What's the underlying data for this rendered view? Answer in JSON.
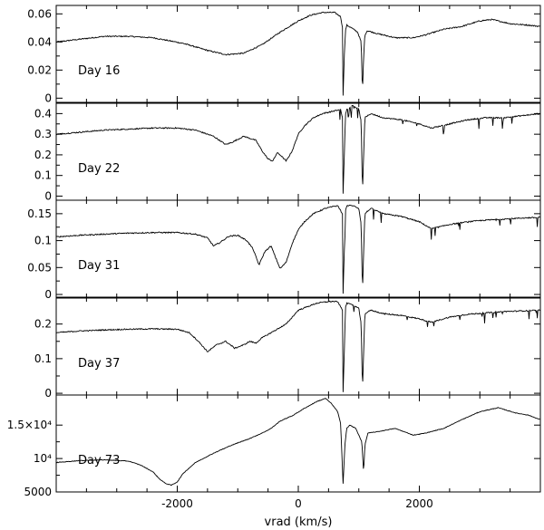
{
  "chart_data": [
    {
      "type": "line",
      "panel_label": "Day 16",
      "ylim": [
        -0.003,
        0.066
      ],
      "y_ticks": [
        0,
        0.02,
        0.04,
        0.06
      ],
      "y_tick_labels": [
        "0",
        "0.02",
        "0.04",
        "0.06"
      ],
      "series": [
        {
          "x": [
            -4000,
            -3600,
            -3200,
            -2800,
            -2400,
            -1900,
            -1500,
            -1200,
            -900,
            -600,
            -300,
            0,
            200,
            400,
            600,
            700,
            730,
            740,
            760,
            780,
            800,
            880,
            980,
            1040,
            1060,
            1080,
            1100,
            1140,
            1300,
            1600,
            1900,
            2100,
            2400,
            2700,
            3000,
            3200,
            3500,
            3800,
            4000
          ],
          "y": [
            0.04,
            0.042,
            0.044,
            0.044,
            0.043,
            0.039,
            0.034,
            0.031,
            0.032,
            0.038,
            0.047,
            0.055,
            0.059,
            0.061,
            0.061,
            0.058,
            0.05,
            0.002,
            0.03,
            0.048,
            0.052,
            0.05,
            0.047,
            0.04,
            0.003,
            0.03,
            0.045,
            0.048,
            0.046,
            0.043,
            0.043,
            0.045,
            0.049,
            0.051,
            0.055,
            0.056,
            0.053,
            0.052,
            0.051
          ]
        }
      ]
    },
    {
      "type": "line",
      "panel_label": "Day 22",
      "ylim": [
        -0.02,
        0.45
      ],
      "y_ticks": [
        0,
        0.1,
        0.2,
        0.3,
        0.4
      ],
      "y_tick_labels": [
        "0",
        "0.1",
        "0.2",
        "0.3",
        "0.4"
      ],
      "series": [
        {
          "x": [
            -4000,
            -3600,
            -3200,
            -2800,
            -2400,
            -2000,
            -1700,
            -1400,
            -1200,
            -1100,
            -900,
            -700,
            -600,
            -500,
            -420,
            -350,
            -300,
            -200,
            -100,
            0,
            100,
            250,
            400,
            550,
            700,
            730,
            740,
            760,
            780,
            800,
            900,
            1000,
            1040,
            1060,
            1080,
            1100,
            1200,
            1400,
            1700,
            2000,
            2200,
            2500,
            2800,
            3100,
            3400,
            3700,
            4000
          ],
          "y": [
            0.3,
            0.31,
            0.32,
            0.325,
            0.33,
            0.33,
            0.32,
            0.29,
            0.25,
            0.26,
            0.29,
            0.27,
            0.22,
            0.18,
            0.17,
            0.21,
            0.2,
            0.17,
            0.22,
            0.3,
            0.34,
            0.38,
            0.4,
            0.41,
            0.42,
            0.38,
            0.01,
            0.2,
            0.4,
            0.42,
            0.44,
            0.42,
            0.36,
            0.01,
            0.2,
            0.38,
            0.4,
            0.38,
            0.37,
            0.35,
            0.33,
            0.35,
            0.37,
            0.38,
            0.38,
            0.39,
            0.4
          ]
        }
      ]
    },
    {
      "type": "line",
      "panel_label": "Day 31",
      "ylim": [
        -0.005,
        0.175
      ],
      "y_ticks": [
        0,
        0.05,
        0.1,
        0.15
      ],
      "y_tick_labels": [
        "0",
        "0.05",
        "0.1",
        "0.15"
      ],
      "series": [
        {
          "x": [
            -4000,
            -3600,
            -3200,
            -2800,
            -2400,
            -2000,
            -1700,
            -1500,
            -1400,
            -1300,
            -1150,
            -1000,
            -850,
            -750,
            -650,
            -550,
            -450,
            -380,
            -300,
            -200,
            -100,
            0,
            100,
            250,
            450,
            650,
            730,
            740,
            760,
            780,
            800,
            900,
            1000,
            1040,
            1060,
            1080,
            1100,
            1200,
            1400,
            1700,
            2000,
            2200,
            2500,
            2800,
            3100,
            3400,
            3700,
            4000
          ],
          "y": [
            0.107,
            0.11,
            0.112,
            0.114,
            0.115,
            0.115,
            0.112,
            0.105,
            0.09,
            0.096,
            0.108,
            0.11,
            0.1,
            0.085,
            0.055,
            0.08,
            0.09,
            0.07,
            0.048,
            0.06,
            0.095,
            0.12,
            0.135,
            0.15,
            0.16,
            0.165,
            0.15,
            0.002,
            0.08,
            0.155,
            0.165,
            0.165,
            0.16,
            0.13,
            0.002,
            0.08,
            0.15,
            0.16,
            0.15,
            0.145,
            0.135,
            0.122,
            0.13,
            0.135,
            0.138,
            0.14,
            0.142,
            0.143
          ]
        }
      ]
    },
    {
      "type": "line",
      "panel_label": "Day 37",
      "ylim": [
        -0.005,
        0.275
      ],
      "y_ticks": [
        0,
        0.1,
        0.2
      ],
      "y_tick_labels": [
        "0",
        "0.1",
        "0.2"
      ],
      "series": [
        {
          "x": [
            -4000,
            -3600,
            -3200,
            -2800,
            -2400,
            -2000,
            -1800,
            -1650,
            -1500,
            -1350,
            -1200,
            -1050,
            -900,
            -800,
            -700,
            -600,
            -500,
            -400,
            -300,
            -200,
            -100,
            0,
            150,
            300,
            500,
            650,
            730,
            740,
            760,
            780,
            800,
            900,
            1000,
            1040,
            1060,
            1080,
            1100,
            1200,
            1400,
            1700,
            2000,
            2200,
            2500,
            2800,
            3100,
            3400,
            3700,
            4000
          ],
          "y": [
            0.175,
            0.18,
            0.183,
            0.185,
            0.186,
            0.185,
            0.175,
            0.15,
            0.12,
            0.14,
            0.15,
            0.13,
            0.14,
            0.15,
            0.145,
            0.16,
            0.17,
            0.18,
            0.19,
            0.2,
            0.22,
            0.24,
            0.25,
            0.26,
            0.265,
            0.265,
            0.24,
            0.003,
            0.12,
            0.25,
            0.26,
            0.255,
            0.245,
            0.2,
            0.003,
            0.12,
            0.23,
            0.24,
            0.23,
            0.225,
            0.215,
            0.205,
            0.22,
            0.228,
            0.232,
            0.236,
            0.238,
            0.24
          ]
        }
      ]
    },
    {
      "type": "line",
      "panel_label": "Day 73",
      "ylim": [
        5000,
        19500
      ],
      "y_ticks": [
        5000,
        10000,
        15000
      ],
      "y_tick_labels": [
        "5000",
        "10⁴",
        "1.5×10⁴"
      ],
      "series": [
        {
          "x": [
            -4000,
            -3600,
            -3200,
            -2800,
            -2600,
            -2400,
            -2300,
            -2200,
            -2100,
            -2000,
            -1900,
            -1700,
            -1400,
            -1100,
            -800,
            -600,
            -450,
            -300,
            -100,
            100,
            300,
            450,
            550,
            650,
            700,
            740,
            770,
            800,
            850,
            950,
            1050,
            1080,
            1100,
            1150,
            1300,
            1600,
            1900,
            2100,
            2400,
            2700,
            3000,
            3300,
            3600,
            3800,
            4000
          ],
          "y": [
            9400,
            9700,
            9800,
            9600,
            9000,
            8000,
            7000,
            6300,
            6000,
            6500,
            7800,
            9400,
            10800,
            12000,
            13000,
            13800,
            14500,
            15600,
            16400,
            17500,
            18500,
            19000,
            18200,
            17000,
            15200,
            6200,
            12000,
            14500,
            15000,
            14500,
            12500,
            7800,
            12000,
            13800,
            14000,
            14500,
            13500,
            13800,
            14500,
            15800,
            17000,
            17600,
            16800,
            16500,
            15800
          ]
        }
      ]
    }
  ],
  "x_axis": {
    "label": "vrad  (km/s)",
    "xlim": [
      -4000,
      4000
    ],
    "ticks": [
      -2000,
      0,
      2000
    ],
    "tick_labels": [
      "-2000",
      "0",
      "2000"
    ]
  }
}
